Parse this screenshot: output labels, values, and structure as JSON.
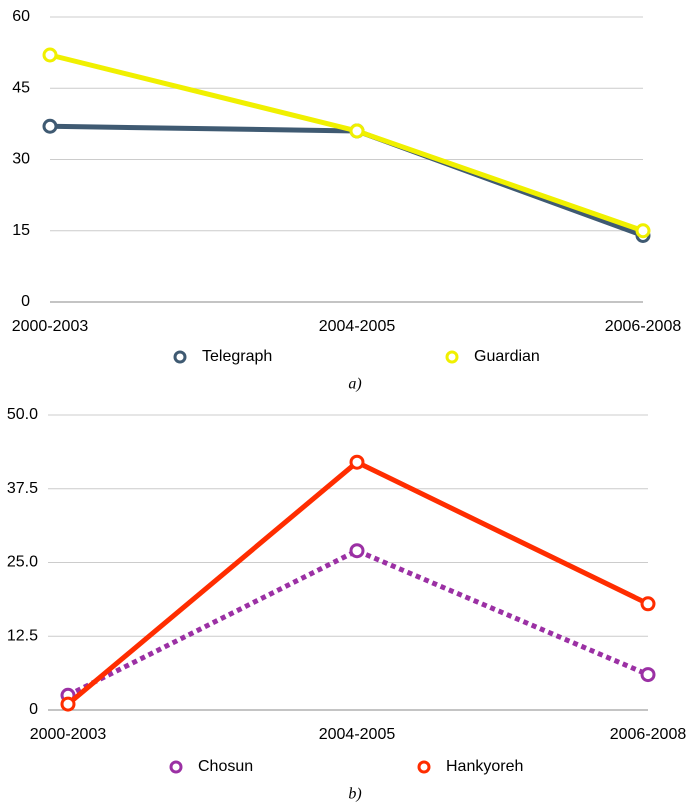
{
  "chart_data": [
    {
      "type": "line",
      "caption": "a)",
      "categories": [
        "2000-2003",
        "2004-2005",
        "2006-2008"
      ],
      "series": [
        {
          "name": "Telegraph",
          "color": "#3f5a72",
          "values": [
            37,
            36,
            14
          ]
        },
        {
          "name": "Guardian",
          "color": "#f0f000",
          "values": [
            52,
            36,
            15
          ]
        }
      ],
      "ylim": [
        0,
        60
      ],
      "yticks": [
        0,
        15,
        30,
        45,
        60
      ],
      "grid": true,
      "legend": "bottom"
    },
    {
      "type": "line",
      "caption": "b)",
      "categories": [
        "2000-2003",
        "2004-2005",
        "2006-2008"
      ],
      "series": [
        {
          "name": "Chosun",
          "color": "#9b30a4",
          "dashed": true,
          "values": [
            2.5,
            27,
            6
          ]
        },
        {
          "name": "Hankyoreh",
          "color": "#ff2d00",
          "values": [
            1,
            42,
            18
          ]
        }
      ],
      "ylim": [
        0,
        50
      ],
      "yticks": [
        0,
        12.5,
        {
          "value": 25,
          "label": "25.0"
        },
        37.5,
        {
          "value": 50,
          "label": "50.0"
        }
      ],
      "grid": true,
      "legend": "bottom"
    }
  ]
}
